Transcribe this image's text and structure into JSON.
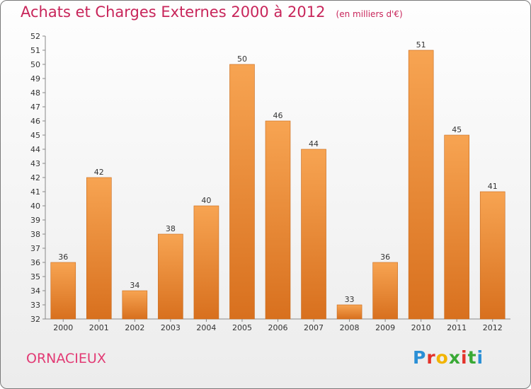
{
  "header": {
    "title": "Achats et Charges Externes 2000 à 2012",
    "unit_note": "(en milliers d'€)"
  },
  "footer": {
    "commune": "ORNACIEUX",
    "brand": {
      "letters": [
        "P",
        "r",
        "o",
        "x",
        "i",
        "t",
        "i"
      ],
      "colors": [
        "#2a8fd6",
        "#e3322a",
        "#f2b400",
        "#39a935",
        "#e3322a",
        "#39a935",
        "#2a8fd6"
      ]
    }
  },
  "colors": {
    "bar_light": "#f7a452",
    "bar_dark": "#d8701e",
    "title": "#c8255a",
    "commune": "#e23a74"
  },
  "chart_data": {
    "type": "bar",
    "title": "Achats et Charges Externes 2000 à 2012",
    "subtitle": "(en milliers d'€)",
    "xlabel": "",
    "ylabel": "",
    "categories": [
      "2000",
      "2001",
      "2002",
      "2003",
      "2004",
      "2005",
      "2006",
      "2007",
      "2008",
      "2009",
      "2010",
      "2011",
      "2012"
    ],
    "values": [
      36,
      42,
      34,
      38,
      40,
      50,
      46,
      44,
      33,
      36,
      51,
      45,
      41
    ],
    "ylim": [
      32,
      52
    ],
    "yticks": [
      "32",
      "33",
      "34",
      "35",
      "36",
      "37",
      "38",
      "39",
      "40",
      "41",
      "42",
      "43",
      "44",
      "45",
      "46",
      "47",
      "48",
      "49",
      "50",
      "51",
      "52"
    ],
    "grid": false,
    "legend": "none"
  }
}
